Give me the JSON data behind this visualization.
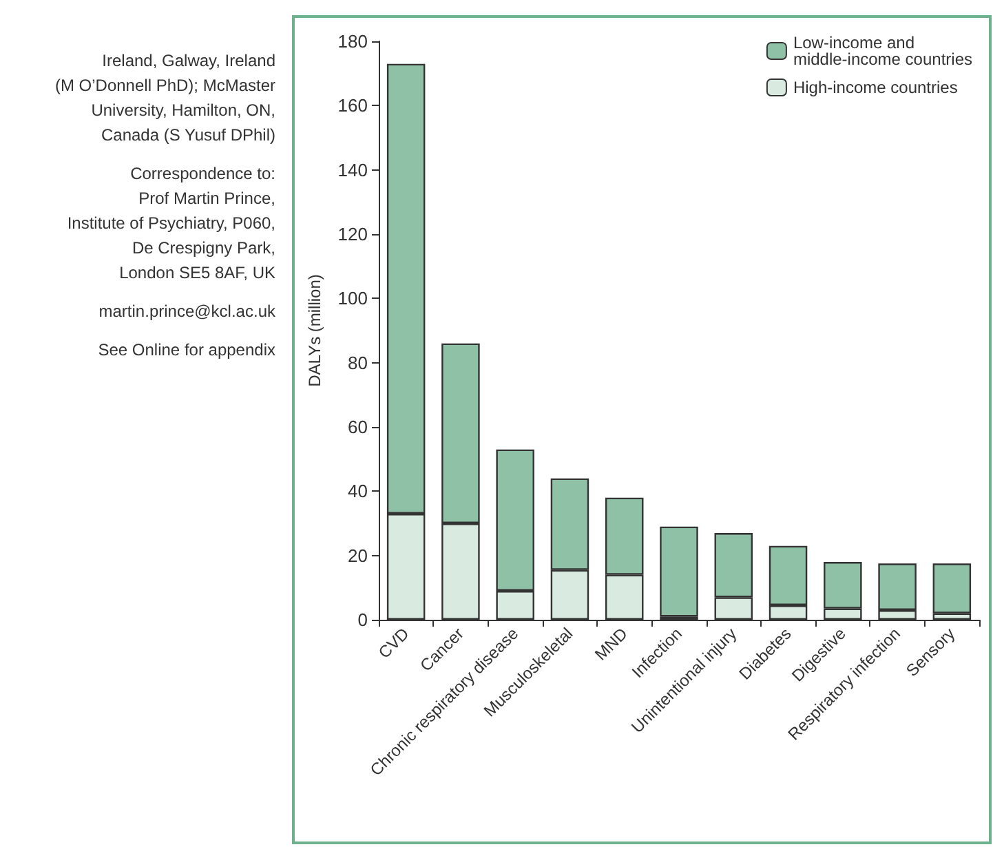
{
  "chart_data": {
    "type": "bar",
    "stacked": true,
    "ylabel": "DALYs (million)",
    "categories": [
      "CVD",
      "Cancer",
      "Chronic respiratory disease",
      "Musculoskeletal",
      "MND",
      "Infection",
      "Unintentional injury",
      "Diabetes",
      "Digestive",
      "Respiratory infection",
      "Sensory"
    ],
    "series": [
      {
        "name": "High-income countries",
        "color": "#d9ebe1",
        "values": [
          33,
          30,
          9,
          15.5,
          14,
          1,
          7,
          4.5,
          3.5,
          3,
          2
        ]
      },
      {
        "name": "Low-income and\nmiddle-income countries",
        "color": "#8fc1a7",
        "values": [
          140,
          56,
          44,
          28.5,
          24,
          28,
          20,
          18.5,
          14.5,
          14.5,
          15.5
        ]
      }
    ],
    "ylim": [
      0,
      180
    ],
    "yticks": [
      0,
      20,
      40,
      60,
      80,
      100,
      120,
      140,
      160,
      180
    ],
    "grid": false,
    "legend": "top right",
    "annotations": [
      "Ireland, Galway, Ireland\n(M O’Donnell PhD); McMaster\nUniversity, Hamilton, ON,\nCanada (S Yusuf DPhil)",
      "Correspondence to:\nProf Martin Prince,\nInstitute of Psychiatry, P060,\nDe Crespigny Park,\nLondon SE5 8AF, UK",
      "martin.prince@kcl.ac.uk",
      "See Online for appendix"
    ]
  }
}
